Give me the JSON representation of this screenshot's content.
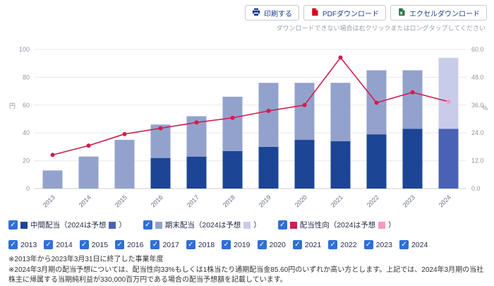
{
  "toolbar": {
    "print_label": "印刷する",
    "pdf_label": "PDFダウンロード",
    "excel_label": "エクセルダウンロード",
    "hint": "ダウンロードできない場合は右クリックまたはロングタップしてください"
  },
  "colors": {
    "interim": "#1d4596",
    "interim_forecast": "#4a62b6",
    "yearend": "#93a2cc",
    "yearend_forecast": "#c9cce9",
    "line": "#cf1e4e",
    "line_forecast": "#f29ac2",
    "checkbox": "#2f6fd6",
    "grid": "#e8e8e8",
    "baseline": "#cfcfcf",
    "button_text": "#1c3d8f"
  },
  "chart_data": {
    "type": "bar",
    "subtype": "stacked bars with right-axis line",
    "categories": [
      "2013",
      "2014",
      "2015",
      "2016",
      "2017",
      "2018",
      "2019",
      "2020",
      "2021",
      "2022",
      "2023",
      "2024"
    ],
    "series": [
      {
        "name": "中間配当",
        "type": "bar",
        "stack": true,
        "axis": "left",
        "values": [
          0,
          0,
          0,
          22,
          23,
          27,
          30,
          35,
          34,
          39,
          43,
          43
        ]
      },
      {
        "name": "期末配当",
        "type": "bar",
        "stack": true,
        "axis": "left",
        "values": [
          13,
          23,
          35,
          24,
          29,
          39,
          46,
          41,
          42,
          46,
          42,
          51
        ]
      },
      {
        "name": "配当性向",
        "type": "line",
        "axis": "right",
        "values": [
          14.5,
          18.5,
          23.5,
          26.0,
          28.5,
          30.5,
          33.5,
          36.0,
          56.5,
          37.0,
          41.5,
          37.5
        ]
      }
    ],
    "left_axis": {
      "label": "円",
      "min": 0,
      "max": 100,
      "ticks": [
        0,
        20,
        40,
        60,
        80,
        100
      ]
    },
    "right_axis": {
      "label": "%",
      "min": 0,
      "max": 60,
      "tick_labels": [
        "0.0",
        "12.0",
        "24.0",
        "36.0",
        "48.0",
        "60.0"
      ]
    },
    "forecast_year": "2024",
    "grid": true,
    "legend_position": "bottom"
  },
  "legend": {
    "series": [
      {
        "name": "中間配当",
        "label_before": "中間配当（2024は予想 ",
        "label_after": "）",
        "color": "#1d4596",
        "forecast_color": "#4a62b6",
        "checked": true
      },
      {
        "name": "期末配当",
        "label_before": "期末配当（2024は予想 ",
        "label_after": "）",
        "color": "#93a2cc",
        "forecast_color": "#c9cce9",
        "checked": true
      },
      {
        "name": "配当性向",
        "label_before": "配当性向（2024は予想 ",
        "label_after": "）",
        "color": "#cf1e4e",
        "forecast_color": "#f29ac2",
        "checked": true
      }
    ]
  },
  "years": [
    "2013",
    "2014",
    "2015",
    "2016",
    "2017",
    "2018",
    "2019",
    "2020",
    "2021",
    "2022",
    "2023",
    "2024"
  ],
  "notes": [
    "※2013年から2023年3月31日に終了した事業年度",
    "※2024年3月期の配当予想については、配当性向33%もしくは1株当たり通期配当金85.60円のいずれか高い方とします。上記では、2024年3月期の当社株主に帰属する当期純利益が330,000百万円である場合の配当予想額を記載しています。"
  ]
}
